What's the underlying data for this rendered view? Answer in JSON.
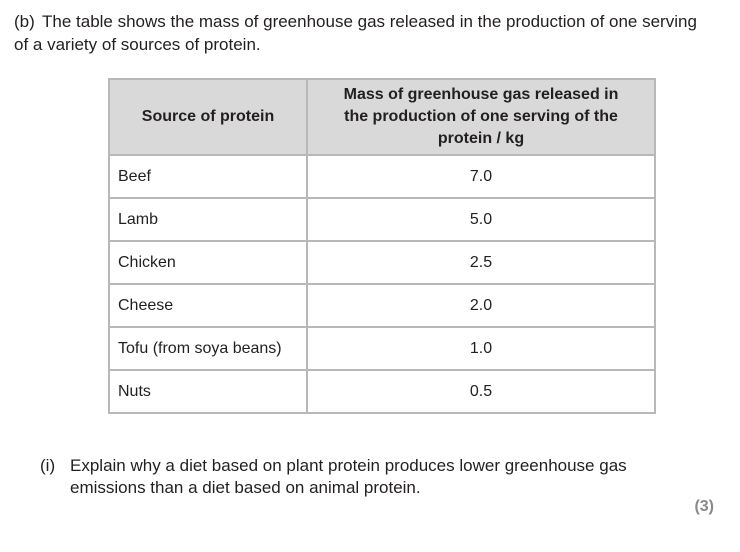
{
  "part": {
    "label": "(b)",
    "text": "The table shows the mass of greenhouse gas released in the production of one serving of a variety of sources of protein."
  },
  "table": {
    "headers": [
      "Source of protein",
      "Mass of greenhouse gas released in the production of one serving of the protein / kg"
    ],
    "rows": [
      {
        "source": "Beef",
        "mass": "7.0"
      },
      {
        "source": "Lamb",
        "mass": "5.0"
      },
      {
        "source": "Chicken",
        "mass": "2.5"
      },
      {
        "source": "Cheese",
        "mass": "2.0"
      },
      {
        "source": "Tofu (from soya beans)",
        "mass": "1.0"
      },
      {
        "source": "Nuts",
        "mass": "0.5"
      }
    ]
  },
  "question": {
    "label": "(i)",
    "text": "Explain why a diet based on plant protein produces lower greenhouse gas emissions than a diet based on animal protein."
  },
  "marks": "(3)"
}
